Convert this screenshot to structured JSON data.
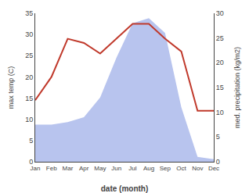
{
  "chart_data": {
    "type": "line",
    "categories": [
      "Jan",
      "Feb",
      "Mar",
      "Apr",
      "May",
      "Jun",
      "Jul",
      "Aug",
      "Sep",
      "Oct",
      "Nov",
      "Dec"
    ],
    "series": [
      {
        "type": "area",
        "axis": "y2",
        "color": "#b8c4ee",
        "values": [
          7.5,
          7.5,
          8.0,
          9.0,
          13.0,
          21.0,
          28.0,
          29.0,
          26.0,
          11.0,
          1.0,
          0.5
        ]
      },
      {
        "type": "line",
        "color": "#c0392b",
        "values": [
          14.5,
          20.0,
          29.0,
          28.0,
          25.5,
          29.0,
          32.5,
          32.5,
          29.0,
          26.0,
          12.0,
          12.0
        ]
      }
    ],
    "xlabel": "date (month)",
    "ylabel": "max temp (C)",
    "y2label": "med. precipitation (kg/m2)",
    "ylim": [
      0,
      35
    ],
    "yticks": [
      0,
      5,
      10,
      15,
      20,
      25,
      30,
      35
    ],
    "y2lim": [
      0,
      30
    ],
    "y2ticks": [
      0,
      5,
      10,
      15,
      20,
      25,
      30
    ],
    "grid": false
  }
}
